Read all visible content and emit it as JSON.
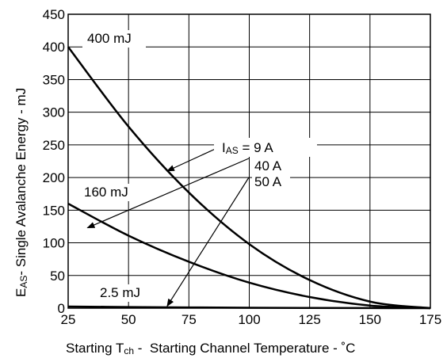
{
  "chart_data": {
    "type": "line",
    "xlabel": {
      "prefix": "Starting T",
      "sub": "ch",
      "suffix": " -  Starting Channel Temperature - ˚C"
    },
    "ylabel": {
      "prefix": "E",
      "sub": "AS",
      "suffix": "- Single Avalanche Energy - mJ"
    },
    "xlim": [
      25,
      175
    ],
    "ylim": [
      0,
      450
    ],
    "x_ticks": [
      "25",
      "50",
      "75",
      "100",
      "125",
      "150",
      "175"
    ],
    "y_ticks": [
      "0",
      "50",
      "100",
      "150",
      "200",
      "250",
      "300",
      "350",
      "400",
      "450"
    ],
    "grid": true,
    "series": [
      {
        "label_text": "400 mJ",
        "current": "9 A",
        "x": [
          25,
          50,
          75,
          100,
          125,
          150,
          175
        ],
        "values": [
          400,
          278,
          177,
          98,
          43,
          10,
          0
        ]
      },
      {
        "label_text": "160 mJ",
        "current": "40 A",
        "x": [
          25,
          50,
          75,
          100,
          125,
          150,
          175
        ],
        "values": [
          160,
          111,
          71,
          39,
          17,
          4,
          0
        ]
      },
      {
        "label_text": "2.5 mJ",
        "current": "50 A",
        "x": [
          25,
          50,
          75,
          100,
          125,
          150,
          175
        ],
        "values": [
          2.5,
          1.7,
          1.1,
          0.6,
          0.3,
          0.1,
          0
        ]
      }
    ],
    "current_label": {
      "prefix": "I",
      "sub": "AS",
      "eq": " = 9 A",
      "line2": "40 A",
      "line3": "50 A"
    }
  }
}
